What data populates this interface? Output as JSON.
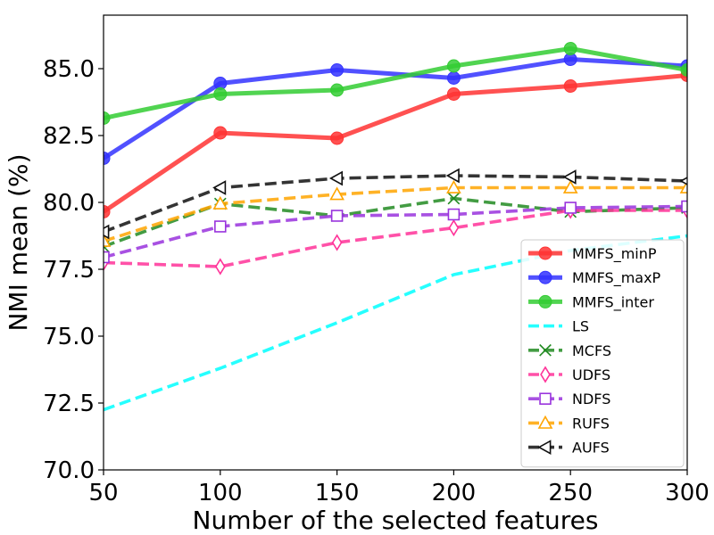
{
  "chart_data": {
    "type": "line",
    "title": "",
    "xlabel": "Number of the selected features",
    "ylabel": "NMI mean (%)",
    "xlim": [
      50,
      300
    ],
    "ylim": [
      70.0,
      87.0
    ],
    "x": [
      50,
      100,
      150,
      200,
      250,
      300
    ],
    "xticks": [
      50,
      100,
      150,
      200,
      250,
      300
    ],
    "yticks": [
      70.0,
      72.5,
      75.0,
      77.5,
      80.0,
      82.5,
      85.0
    ],
    "ytick_labels": [
      "70.0",
      "72.5",
      "75.0",
      "77.5",
      "80.0",
      "82.5",
      "85.0"
    ],
    "legend_position": "lower-right",
    "series": [
      {
        "name": "MMFS_minP",
        "values": [
          79.65,
          82.6,
          82.4,
          84.05,
          84.35,
          84.75
        ],
        "color": "#ff3333",
        "dash": "solid",
        "marker": "circle-filled"
      },
      {
        "name": "MMFS_maxP",
        "values": [
          81.65,
          84.45,
          84.95,
          84.65,
          85.35,
          85.1
        ],
        "color": "#3333ff",
        "dash": "solid",
        "marker": "circle-filled"
      },
      {
        "name": "MMFS_inter",
        "values": [
          83.15,
          84.05,
          84.2,
          85.1,
          85.75,
          84.95
        ],
        "color": "#33cc33",
        "dash": "solid",
        "marker": "circle-filled"
      },
      {
        "name": "LS",
        "values": [
          72.25,
          73.8,
          75.5,
          77.3,
          78.2,
          78.75
        ],
        "color": "#00ffff",
        "dash": "dashed",
        "marker": "none"
      },
      {
        "name": "MCFS",
        "values": [
          78.35,
          79.95,
          79.5,
          80.15,
          79.65,
          79.8
        ],
        "color": "#228b22",
        "dash": "dashed",
        "marker": "x"
      },
      {
        "name": "UDFS",
        "values": [
          77.75,
          77.6,
          78.5,
          79.05,
          79.7,
          79.7
        ],
        "color": "#ff3399",
        "dash": "dashed",
        "marker": "diamond-open"
      },
      {
        "name": "NDFS",
        "values": [
          77.95,
          79.1,
          79.5,
          79.55,
          79.8,
          79.85
        ],
        "color": "#9933dd",
        "dash": "dashed",
        "marker": "square-open"
      },
      {
        "name": "RUFS",
        "values": [
          78.55,
          79.95,
          80.3,
          80.55,
          80.55,
          80.55
        ],
        "color": "#ffa500",
        "dash": "dashed",
        "marker": "triangle-up-open"
      },
      {
        "name": "AUFS",
        "values": [
          78.9,
          80.55,
          80.9,
          81.0,
          80.95,
          80.8
        ],
        "color": "#111111",
        "dash": "dashed",
        "marker": "triangle-left-open"
      }
    ]
  }
}
